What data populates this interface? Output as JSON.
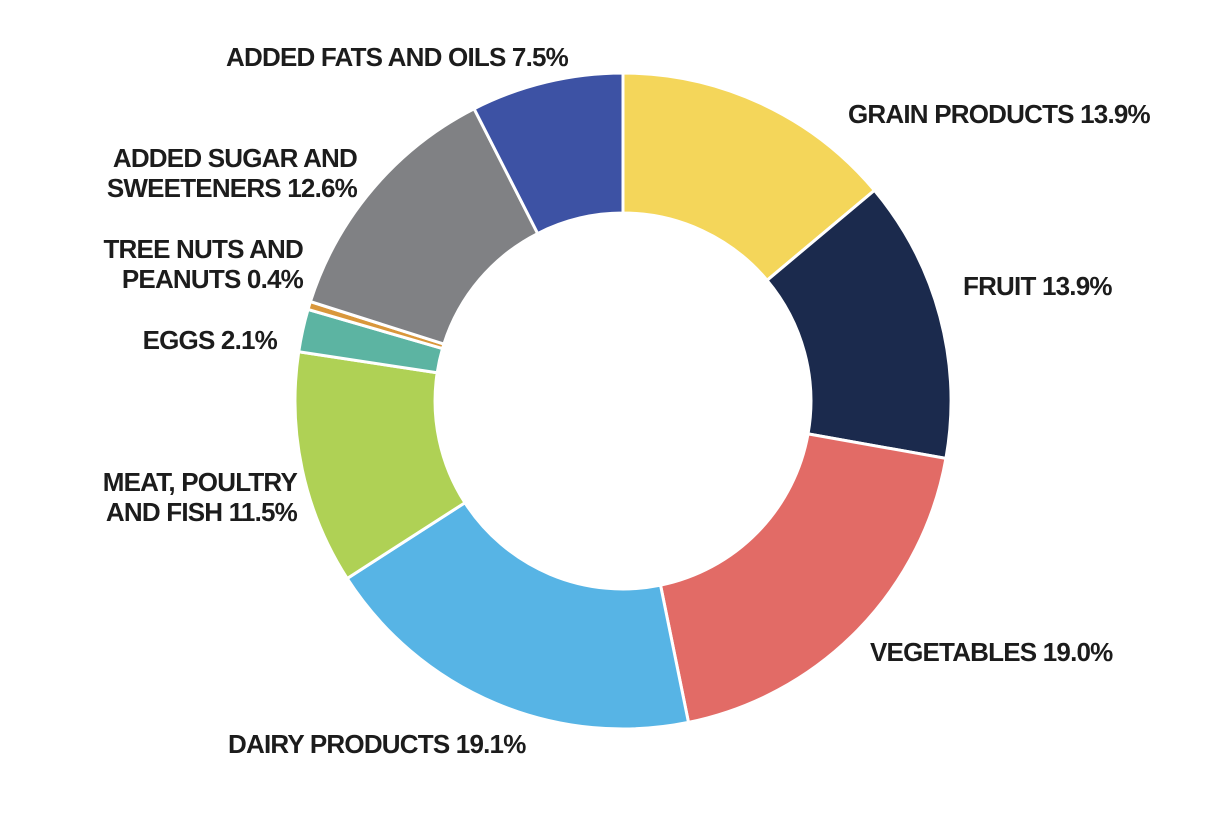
{
  "chart_data": {
    "type": "pie",
    "subtype": "donut",
    "title": "",
    "unit": "%",
    "total": 100.0,
    "start_angle_deg": 0,
    "direction": "clockwise",
    "inner_radius_ratio": 0.573,
    "background_color": "#ffffff",
    "slice_gap_color": "#ffffff",
    "label_color": "#1c1c1c",
    "slices": [
      {
        "label": "GRAIN PRODUCTS",
        "value": 13.9,
        "color": "#F4D65A",
        "label_lines": [
          "GRAIN PRODUCTS 13.9%"
        ]
      },
      {
        "label": "FRUIT",
        "value": 13.9,
        "color": "#1B2A4D",
        "label_lines": [
          "FRUIT 13.9%"
        ]
      },
      {
        "label": "VEGETABLES",
        "value": 19.0,
        "color": "#E26B66",
        "label_lines": [
          "VEGETABLES 19.0%"
        ]
      },
      {
        "label": "DAIRY PRODUCTS",
        "value": 19.1,
        "color": "#57B4E5",
        "label_lines": [
          "DAIRY PRODUCTS 19.1%"
        ]
      },
      {
        "label": "MEAT, POULTRY AND FISH",
        "value": 11.5,
        "color": "#AFD155",
        "label_lines": [
          "MEAT, POULTRY",
          "AND FISH 11.5%"
        ]
      },
      {
        "label": "EGGS",
        "value": 2.1,
        "color": "#5CB4A2",
        "label_lines": [
          "EGGS 2.1%"
        ]
      },
      {
        "label": "TREE NUTS AND PEANUTS",
        "value": 0.4,
        "color": "#D9973B",
        "label_lines": [
          "TREE NUTS AND",
          "PEANUTS 0.4%"
        ]
      },
      {
        "label": "ADDED SUGAR AND SWEETENERS",
        "value": 12.6,
        "color": "#808184",
        "label_lines": [
          "ADDED SUGAR AND",
          "SWEETENERS 12.6%"
        ]
      },
      {
        "label": "ADDED FATS AND OILS",
        "value": 7.5,
        "color": "#3D52A4",
        "label_lines": [
          "ADDED FATS AND OILS 7.5%"
        ]
      }
    ]
  }
}
